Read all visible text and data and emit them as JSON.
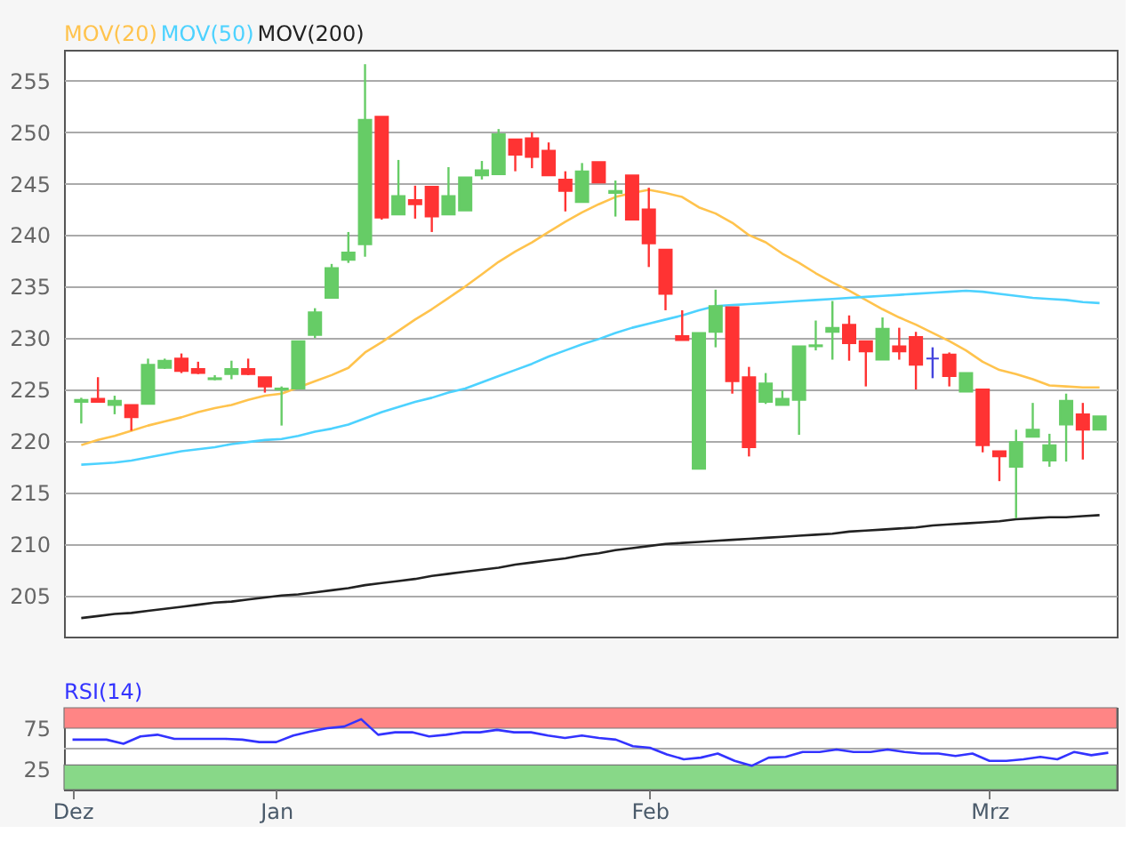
{
  "chart_data": [
    {
      "type": "candlestick",
      "ohlc": [
        [
          223.8,
          224.2,
          221.7,
          224.0
        ],
        [
          224.1,
          226.2,
          223.8,
          223.8
        ],
        [
          223.5,
          224.4,
          222.6,
          223.9
        ],
        [
          223.5,
          223.5,
          221.0,
          222.3
        ],
        [
          223.6,
          228.0,
          223.6,
          227.4
        ],
        [
          227.1,
          228.0,
          227.0,
          227.8
        ],
        [
          228.0,
          228.5,
          226.6,
          226.8
        ],
        [
          227.0,
          227.7,
          226.5,
          226.6
        ],
        [
          226.0,
          226.4,
          225.9,
          226.1
        ],
        [
          226.5,
          227.8,
          226.0,
          227.0
        ],
        [
          227.0,
          228.0,
          226.4,
          226.5
        ],
        [
          226.2,
          226.2,
          224.7,
          225.3
        ],
        [
          225.0,
          225.3,
          221.5,
          225.1
        ],
        [
          225.1,
          229.7,
          225.1,
          229.7
        ],
        [
          230.3,
          232.9,
          230.0,
          232.5
        ],
        [
          233.9,
          237.2,
          233.9,
          236.8
        ],
        [
          237.6,
          240.3,
          237.3,
          238.3
        ],
        [
          239.1,
          256.6,
          237.9,
          251.2
        ],
        [
          251.5,
          251.5,
          241.5,
          241.7
        ],
        [
          242.0,
          247.3,
          242.0,
          243.8
        ],
        [
          243.4,
          244.8,
          241.6,
          243.0
        ],
        [
          244.7,
          244.7,
          240.3,
          241.8
        ],
        [
          242.0,
          246.6,
          242.0,
          243.8
        ],
        [
          242.4,
          245.6,
          242.4,
          245.6
        ],
        [
          245.8,
          247.2,
          245.4,
          246.3
        ],
        [
          245.9,
          250.3,
          245.9,
          249.8
        ],
        [
          249.3,
          249.3,
          246.2,
          247.8
        ],
        [
          249.4,
          250.0,
          246.5,
          247.6
        ],
        [
          248.2,
          249.0,
          245.8,
          245.8
        ],
        [
          245.4,
          246.2,
          242.3,
          244.3
        ],
        [
          243.2,
          247.0,
          243.2,
          246.2
        ],
        [
          247.1,
          247.1,
          245.1,
          245.1
        ],
        [
          244.1,
          245.3,
          241.8,
          244.3
        ],
        [
          245.8,
          245.8,
          241.5,
          241.5
        ],
        [
          242.5,
          244.6,
          236.9,
          239.2
        ],
        [
          238.6,
          238.6,
          232.7,
          234.3
        ],
        [
          230.2,
          232.7,
          229.8,
          229.8
        ],
        [
          217.3,
          230.5,
          217.3,
          230.5
        ],
        [
          230.6,
          234.7,
          229.1,
          233.1
        ],
        [
          233.0,
          233.0,
          224.6,
          225.8
        ],
        [
          226.2,
          227.2,
          218.5,
          219.4
        ],
        [
          223.8,
          226.6,
          223.6,
          225.6
        ],
        [
          223.5,
          224.9,
          223.5,
          224.1
        ],
        [
          224.0,
          229.2,
          220.6,
          229.2
        ],
        [
          229.2,
          231.7,
          228.8,
          229.3
        ],
        [
          230.6,
          233.6,
          227.9,
          231.0
        ],
        [
          231.3,
          232.2,
          227.8,
          229.5
        ],
        [
          229.7,
          229.7,
          225.3,
          228.7
        ],
        [
          227.9,
          232.0,
          227.9,
          230.9
        ],
        [
          229.2,
          231.0,
          227.9,
          228.7
        ],
        [
          230.1,
          230.6,
          225.0,
          227.4
        ],
        [
          228.0,
          229.1,
          226.1,
          228.0
        ],
        [
          228.4,
          228.6,
          225.3,
          226.3
        ],
        [
          224.8,
          226.6,
          224.8,
          226.6
        ],
        [
          225.0,
          225.0,
          218.9,
          219.6
        ],
        [
          219.0,
          219.0,
          216.1,
          218.5
        ],
        [
          217.5,
          221.1,
          212.5,
          219.9
        ],
        [
          220.4,
          223.7,
          220.4,
          221.1
        ],
        [
          218.1,
          220.7,
          217.5,
          219.6
        ],
        [
          221.6,
          224.6,
          218.0,
          223.9
        ],
        [
          222.6,
          223.7,
          218.2,
          221.1
        ],
        [
          221.1,
          222.4,
          221.1,
          222.4
        ]
      ],
      "colors": [
        "#66cc66",
        "#ff3333",
        "#66cc66",
        "#ff3333",
        "#66cc66",
        "#66cc66",
        "#ff3333",
        "#ff3333",
        "#66cc66",
        "#66cc66",
        "#ff3333",
        "#ff3333",
        "#66cc66",
        "#66cc66",
        "#66cc66",
        "#66cc66",
        "#66cc66",
        "#66cc66",
        "#ff3333",
        "#66cc66",
        "#ff3333",
        "#ff3333",
        "#66cc66",
        "#66cc66",
        "#66cc66",
        "#66cc66",
        "#ff3333",
        "#ff3333",
        "#ff3333",
        "#ff3333",
        "#66cc66",
        "#ff3333",
        "#66cc66",
        "#ff3333",
        "#ff3333",
        "#ff3333",
        "#ff3333",
        "#66cc66",
        "#66cc66",
        "#ff3333",
        "#ff3333",
        "#66cc66",
        "#66cc66",
        "#66cc66",
        "#66cc66",
        "#66cc66",
        "#ff3333",
        "#ff3333",
        "#66cc66",
        "#ff3333",
        "#ff3333",
        "#4444dd",
        "#ff3333",
        "#66cc66",
        "#ff3333",
        "#ff3333",
        "#66cc66",
        "#66cc66",
        "#66cc66",
        "#66cc66",
        "#ff3333",
        "#66cc66"
      ],
      "series": [
        {
          "name": "MOV(20)",
          "type": "line",
          "color": "#ffc34d",
          "values": [
            219.6,
            220.1,
            220.5,
            221.0,
            221.5,
            221.9,
            222.3,
            222.8,
            223.2,
            223.5,
            224.0,
            224.4,
            224.6,
            225.2,
            225.8,
            226.4,
            227.1,
            228.6,
            229.6,
            230.7,
            231.8,
            232.8,
            233.9,
            235.0,
            236.2,
            237.4,
            238.4,
            239.3,
            240.3,
            241.3,
            242.2,
            243.0,
            243.7,
            244.1,
            244.4,
            244.1,
            243.7,
            242.7,
            242.1,
            241.2,
            240.0,
            239.3,
            238.2,
            237.3,
            236.3,
            235.4,
            234.6,
            233.7,
            232.8,
            232.0,
            231.3,
            230.5,
            229.7,
            228.8,
            227.7,
            226.9,
            226.5,
            226.0,
            225.4,
            225.3,
            225.2,
            225.2
          ]
        },
        {
          "name": "MOV(50)",
          "type": "line",
          "color": "#4dd2ff",
          "values": [
            217.7,
            217.8,
            217.9,
            218.1,
            218.4,
            218.7,
            219.0,
            219.2,
            219.4,
            219.7,
            219.9,
            220.1,
            220.2,
            220.5,
            220.9,
            221.2,
            221.6,
            222.2,
            222.8,
            223.3,
            223.8,
            224.2,
            224.7,
            225.1,
            225.7,
            226.3,
            226.9,
            227.5,
            228.2,
            228.8,
            229.4,
            229.9,
            230.5,
            231.0,
            231.4,
            231.8,
            232.2,
            232.7,
            233.1,
            233.2,
            233.3,
            233.4,
            233.5,
            233.6,
            233.7,
            233.8,
            233.9,
            234.0,
            234.1,
            234.2,
            234.3,
            234.4,
            234.5,
            234.6,
            234.5,
            234.3,
            234.1,
            233.9,
            233.8,
            233.7,
            233.5,
            233.4
          ]
        },
        {
          "name": "MOV(200)",
          "type": "line",
          "color": "#222222",
          "values": [
            202.8,
            203.0,
            203.2,
            203.3,
            203.5,
            203.7,
            203.9,
            204.1,
            204.3,
            204.4,
            204.6,
            204.8,
            205.0,
            205.1,
            205.3,
            205.5,
            205.7,
            206.0,
            206.2,
            206.4,
            206.6,
            206.9,
            207.1,
            207.3,
            207.5,
            207.7,
            208.0,
            208.2,
            208.4,
            208.6,
            208.9,
            209.1,
            209.4,
            209.6,
            209.8,
            210.0,
            210.1,
            210.2,
            210.3,
            210.4,
            210.5,
            210.6,
            210.7,
            210.8,
            210.9,
            211.0,
            211.2,
            211.3,
            211.4,
            211.5,
            211.6,
            211.8,
            211.9,
            212.0,
            212.1,
            212.2,
            212.4,
            212.5,
            212.6,
            212.6,
            212.7,
            212.8
          ]
        }
      ],
      "ylim": [
        201,
        258
      ],
      "yticks": [
        205,
        210,
        215,
        220,
        225,
        230,
        235,
        240,
        245,
        250,
        255
      ],
      "grid": "y",
      "tick_labels": "y",
      "legend": "top left"
    },
    {
      "type": "line",
      "categories": [
        "Dez",
        null,
        null,
        null,
        null,
        null,
        null,
        null,
        null,
        null,
        null,
        null,
        "Jan",
        null,
        null,
        null,
        null,
        null,
        null,
        null,
        null,
        null,
        null,
        null,
        null,
        null,
        null,
        null,
        null,
        null,
        null,
        null,
        null,
        null,
        "Feb",
        null,
        null,
        null,
        null,
        null,
        null,
        null,
        null,
        null,
        null,
        null,
        null,
        null,
        null,
        null,
        null,
        null,
        null,
        null,
        "Mrz",
        null,
        null,
        null,
        null,
        null,
        null,
        null
      ],
      "series": [
        {
          "name": "RSI(14)",
          "color": "#3333ff",
          "values": [
            61,
            61,
            61,
            56,
            65,
            67,
            62,
            62,
            62,
            62,
            61,
            58,
            58,
            66,
            71,
            75,
            77,
            86,
            67,
            70,
            70,
            65,
            67,
            70,
            70,
            73,
            70,
            70,
            66,
            63,
            66,
            63,
            61,
            53,
            51,
            43,
            37,
            39,
            44,
            35,
            29,
            39,
            40,
            46,
            46,
            49,
            46,
            46,
            49,
            46,
            44,
            44,
            41,
            44,
            35,
            35,
            37,
            40,
            37,
            46,
            42,
            45
          ]
        }
      ],
      "ylim": [
        0,
        100
      ],
      "yticks": [
        25,
        75
      ],
      "bands": [
        {
          "axis": "y",
          "from": 75,
          "to": 100,
          "color": "#ff8585"
        },
        {
          "axis": "y",
          "from": 0,
          "to": 30,
          "color": "#88d888"
        }
      ],
      "ref_lines": [
        {
          "axis": "y",
          "value": 50,
          "color": "#aaaaaa"
        }
      ],
      "legend": "top left"
    }
  ]
}
